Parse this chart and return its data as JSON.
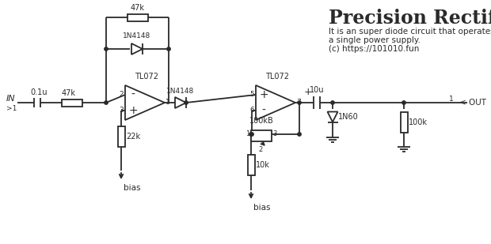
{
  "title": "Precision Rectifier",
  "subtitle1": "It is an super diode circuit that operates with",
  "subtitle2": "a single power supply.",
  "subtitle3": "(c) https://101010.fun",
  "bg_color": "#ffffff",
  "line_color": "#2a2a2a",
  "lw": 1.3,
  "fig_width": 6.2,
  "fig_height": 3.09,
  "dpi": 100
}
